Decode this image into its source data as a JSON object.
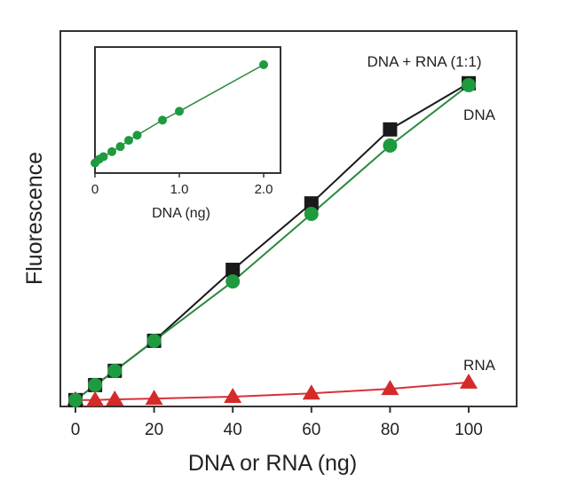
{
  "chart_data": [
    {
      "type": "line",
      "xlabel": "DNA or RNA (ng)",
      "ylabel": "Fluorescence",
      "xlim": [
        -3,
        113
      ],
      "ylim": [
        0,
        100
      ],
      "xticks": [
        "0",
        "20",
        "40",
        "60",
        "80",
        "100"
      ],
      "yticks": [],
      "grid": false,
      "series": [
        {
          "name": "DNA + RNA (1:1)",
          "marker": "square",
          "color": "#1a1a1a",
          "fill": "#1a1a1a",
          "x": [
            0,
            5,
            10,
            20,
            40,
            60,
            80,
            100
          ],
          "y": [
            1.7,
            5.7,
            9.5,
            17.5,
            36.4,
            54.1,
            73.8,
            86.1
          ]
        },
        {
          "name": "DNA",
          "marker": "circle",
          "color": "#2a8a3e",
          "fill": "#1f9a3e",
          "x": [
            0,
            5,
            10,
            20,
            40,
            60,
            80,
            100
          ],
          "y": [
            1.7,
            5.7,
            9.5,
            17.5,
            33.3,
            51.3,
            69.5,
            85.6
          ]
        },
        {
          "name": "RNA",
          "marker": "triangle",
          "color": "#d9303a",
          "fill": "#d42a2a",
          "x": [
            0,
            5,
            10,
            20,
            40,
            60,
            80,
            100
          ],
          "y": [
            1.7,
            1.7,
            1.9,
            2.1,
            2.6,
            3.5,
            4.7,
            6.4
          ]
        }
      ]
    },
    {
      "type": "line",
      "xlabel": "DNA (ng)",
      "ylabel": "",
      "xlim": [
        0,
        2.2
      ],
      "ylim": [
        0,
        1
      ],
      "xticks": [
        "0",
        "1.0",
        "2.0"
      ],
      "yticks": [],
      "grid": false,
      "series": [
        {
          "marker": "circle",
          "color": "#2a8a3e",
          "fill": "#1f9a3e",
          "x": [
            0,
            0.05,
            0.1,
            0.2,
            0.3,
            0.4,
            0.5,
            0.8,
            1.0,
            2.0
          ],
          "y": [
            0.08,
            0.11,
            0.13,
            0.17,
            0.21,
            0.26,
            0.3,
            0.42,
            0.49,
            0.86
          ]
        }
      ]
    }
  ]
}
